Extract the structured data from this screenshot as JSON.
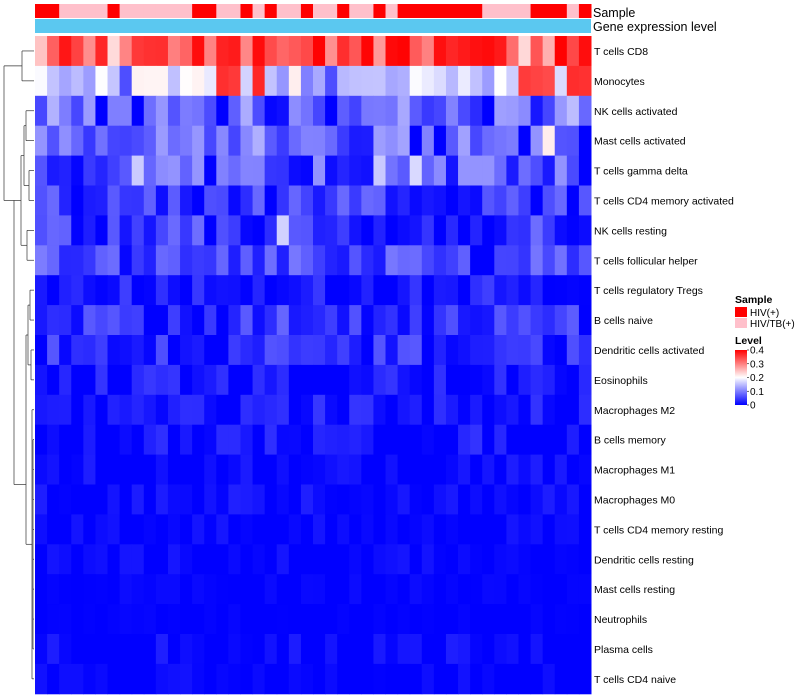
{
  "chart_data": {
    "type": "heatmap",
    "title": "",
    "rows": [
      "T cells CD8",
      "Monocytes",
      "NK cells activated",
      "Mast cells activated",
      "T cells gamma delta",
      "T cells CD4 memory activated",
      "NK cells resting",
      "T cells follicular helper",
      "T cells regulatory  Tregs",
      "B cells naive",
      "Dendritic cells activated",
      "Eosinophils",
      "Macrophages M2",
      "B cells memory",
      "Macrophages M1",
      "Macrophages M0",
      "T cells CD4 memory resting",
      "Dendritic cells resting",
      "Mast cells resting",
      "Neutrophils",
      "Plasma cells",
      "T cells CD4 naive"
    ],
    "n_columns": 46,
    "value_range": [
      0,
      0.4
    ],
    "annotations": [
      {
        "label": "Sample",
        "values": [
          "HIV(+)",
          "HIV(+)",
          "HIV/TB(+)",
          "HIV/TB(+)",
          "HIV/TB(+)",
          "HIV/TB(+)",
          "HIV(+)",
          "HIV/TB(+)",
          "HIV/TB(+)",
          "HIV/TB(+)",
          "HIV/TB(+)",
          "HIV/TB(+)",
          "HIV/TB(+)",
          "HIV(+)",
          "HIV(+)",
          "HIV/TB(+)",
          "HIV/TB(+)",
          "HIV(+)",
          "HIV/TB(+)",
          "HIV(+)",
          "HIV/TB(+)",
          "HIV/TB(+)",
          "HIV(+)",
          "HIV/TB(+)",
          "HIV/TB(+)",
          "HIV(+)",
          "HIV/TB(+)",
          "HIV/TB(+)",
          "HIV(+)",
          "HIV/TB(+)",
          "HIV(+)",
          "HIV(+)",
          "HIV(+)",
          "HIV(+)",
          "HIV(+)",
          "HIV(+)",
          "HIV(+)",
          "HIV/TB(+)",
          "HIV/TB(+)",
          "HIV/TB(+)",
          "HIV/TB(+)",
          "HIV(+)",
          "HIV(+)",
          "HIV(+)",
          "HIV/TB(+)",
          "HIV(+)"
        ]
      },
      {
        "label": "Gene expression level",
        "values": "all-high"
      }
    ],
    "sample_colors": {
      "HIV(+)": "#FF0000",
      "HIV/TB(+)": "#FFC0CB"
    },
    "gene_expression_color": "#5BC8F0",
    "color_scale": {
      "low": "#0000FF",
      "mid": "#FFFFFF",
      "high": "#FF0000",
      "midpoint": 0.2
    },
    "legend": {
      "sample_title": "Sample",
      "sample_items": [
        "HIV(+)",
        "HIV/TB(+)"
      ],
      "level_title": "Level",
      "level_ticks": [
        "0.4",
        "0.3",
        "0.2",
        "0.1",
        "0"
      ],
      "level_values": [
        0.4,
        0.3,
        0.2,
        0.1,
        0
      ]
    },
    "row_profiles": [
      {
        "base": 0.32,
        "var": 0.05,
        "hot": [
          1,
          2,
          5,
          13,
          14,
          15,
          16,
          18,
          23,
          27,
          29,
          30,
          33,
          34,
          35,
          36,
          37,
          38,
          43,
          45
        ],
        "hotv": 0.4,
        "cool": [
          0,
          40
        ],
        "coolv": 0.23
      },
      {
        "base": 0.17,
        "var": 0.05,
        "hot": [
          15,
          16,
          18,
          40,
          41,
          42,
          44,
          45
        ],
        "hotv": 0.37,
        "cool": [],
        "coolv": 0
      },
      {
        "base": 0.1,
        "var": 0.05,
        "hot": [],
        "hotv": 0,
        "cool": [
          8,
          19,
          20
        ],
        "coolv": 0.0
      },
      {
        "base": 0.09,
        "var": 0.05,
        "hot": [
          42
        ],
        "hotv": 0.22,
        "cool": [
          45
        ],
        "coolv": 0.0
      },
      {
        "base": 0.06,
        "var": 0.06,
        "hot": [
          8,
          28,
          29,
          30,
          31,
          32
        ],
        "hotv": 0.18,
        "cool": [],
        "coolv": 0
      },
      {
        "base": 0.04,
        "var": 0.05,
        "hot": [],
        "hotv": 0,
        "cool": [],
        "coolv": 0
      },
      {
        "base": 0.04,
        "var": 0.05,
        "hot": [
          20
        ],
        "hotv": 0.18,
        "cool": [],
        "coolv": 0
      },
      {
        "base": 0.06,
        "var": 0.04,
        "hot": [],
        "hotv": 0,
        "cool": [],
        "coolv": 0
      },
      {
        "base": 0.02,
        "var": 0.03,
        "hot": [],
        "hotv": 0,
        "cool": [],
        "coolv": 0
      },
      {
        "base": 0.04,
        "var": 0.04,
        "hot": [],
        "hotv": 0,
        "cool": [],
        "coolv": 0
      },
      {
        "base": 0.03,
        "var": 0.04,
        "hot": [],
        "hotv": 0,
        "cool": [],
        "coolv": 0
      },
      {
        "base": 0.015,
        "var": 0.03,
        "hot": [],
        "hotv": 0,
        "cool": [],
        "coolv": 0
      },
      {
        "base": 0.015,
        "var": 0.03,
        "hot": [],
        "hotv": 0,
        "cool": [],
        "coolv": 0
      },
      {
        "base": 0.01,
        "var": 0.03,
        "hot": [],
        "hotv": 0,
        "cool": [],
        "coolv": 0
      },
      {
        "base": 0.005,
        "var": 0.02,
        "hot": [],
        "hotv": 0,
        "cool": [],
        "coolv": 0
      },
      {
        "base": 0.005,
        "var": 0.02,
        "hot": [],
        "hotv": 0,
        "cool": [],
        "coolv": 0
      },
      {
        "base": 0.003,
        "var": 0.015,
        "hot": [],
        "hotv": 0,
        "cool": [],
        "coolv": 0
      },
      {
        "base": 0.003,
        "var": 0.015,
        "hot": [],
        "hotv": 0,
        "cool": [],
        "coolv": 0
      },
      {
        "base": 0.0,
        "var": 0.01,
        "hot": [],
        "hotv": 0,
        "cool": [],
        "coolv": 0
      },
      {
        "base": 0.0,
        "var": 0.005,
        "hot": [],
        "hotv": 0,
        "cool": [],
        "coolv": 0
      },
      {
        "base": 0.005,
        "var": 0.02,
        "hot": [],
        "hotv": 0,
        "cool": [],
        "coolv": 0
      },
      {
        "base": 0.003,
        "var": 0.015,
        "hot": [],
        "hotv": 0,
        "cool": [],
        "coolv": 0
      }
    ]
  }
}
